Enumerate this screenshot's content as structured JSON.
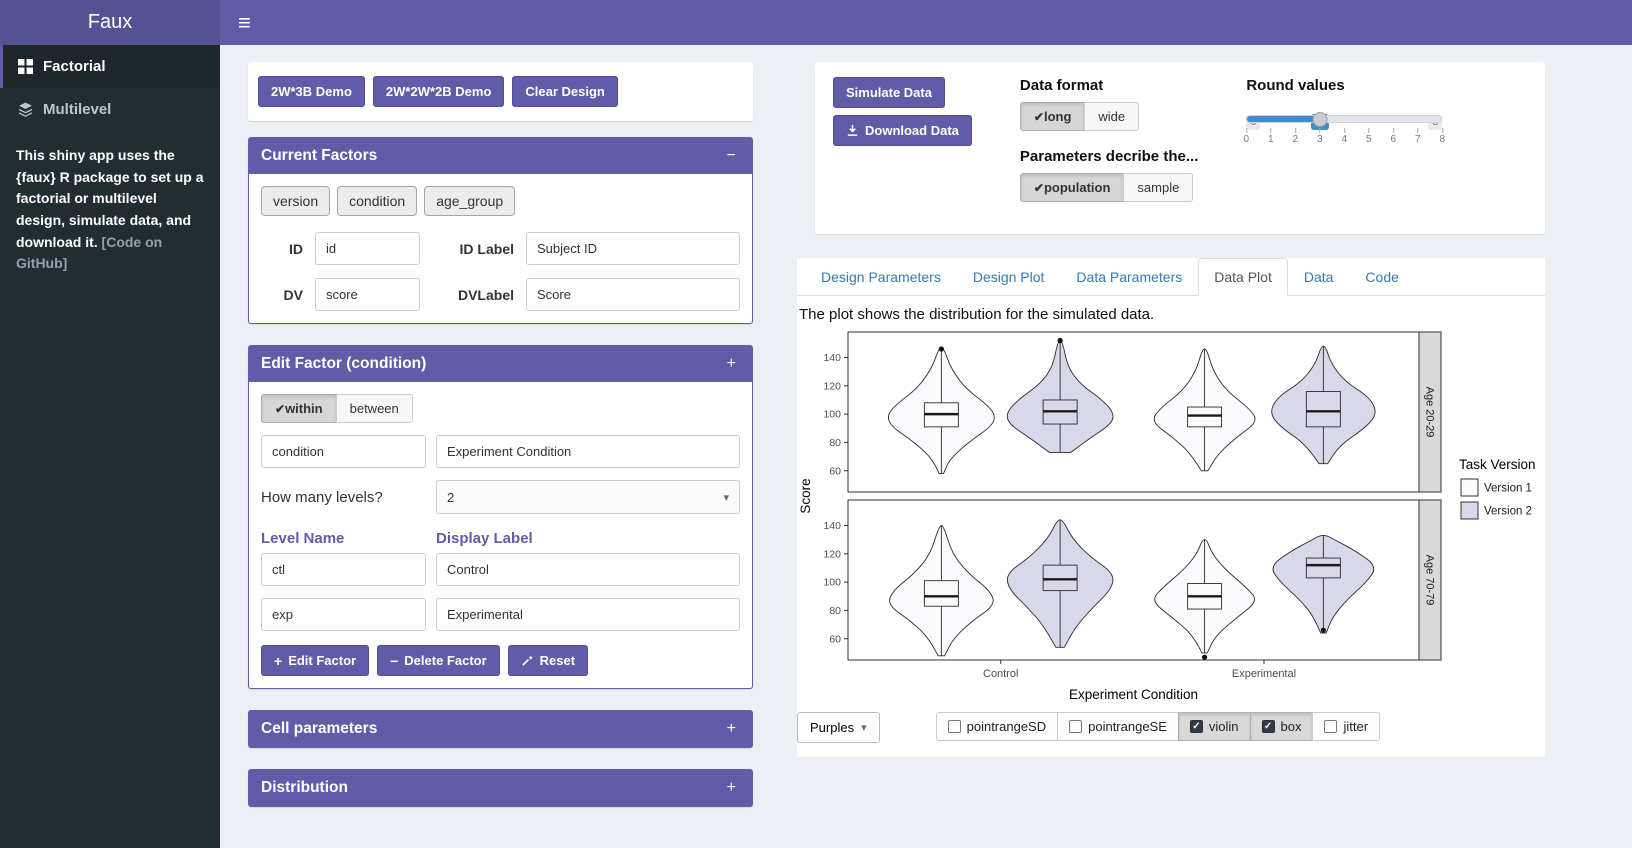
{
  "topbar": {
    "title": "Faux"
  },
  "sidebar": {
    "items": [
      {
        "label": "Factorial",
        "icon": "grid-icon",
        "active": true
      },
      {
        "label": "Multilevel",
        "icon": "layers-icon",
        "active": false
      }
    ],
    "description": "This shiny app uses the {faux} R package to set up a factorial or multilevel design, simulate data, and download it. ",
    "github_link": "[Code on GitHub]"
  },
  "left_panel": {
    "demo_buttons": [
      "2W*3B Demo",
      "2W*2W*2B Demo",
      "Clear Design"
    ],
    "current_factors": {
      "title": "Current Factors",
      "collapse_icon": "−",
      "factor_chips": [
        "version",
        "condition",
        "age_group"
      ],
      "id_label": "ID",
      "id_value": "id",
      "id_label_label": "ID Label",
      "id_label_value": "Subject ID",
      "dv_label": "DV",
      "dv_value": "score",
      "dv_label_label": "DVLabel",
      "dv_label_value": "Score"
    },
    "edit_factor": {
      "title": "Edit Factor (condition)",
      "collapse_icon": "+",
      "within_between": {
        "options": [
          "within",
          "between"
        ],
        "selected": "within"
      },
      "factor_name": "condition",
      "factor_display": "Experiment Condition",
      "levels_label": "How many levels?",
      "levels_count": "2",
      "level_name_header": "Level Name",
      "display_label_header": "Display Label",
      "levels": [
        {
          "name": "ctl",
          "display": "Control"
        },
        {
          "name": "exp",
          "display": "Experimental"
        }
      ],
      "edit_button": "Edit Factor",
      "delete_button": "Delete Factor",
      "reset_button": "Reset"
    },
    "cell_parameters": {
      "title": "Cell parameters",
      "collapse_icon": "+"
    },
    "distribution": {
      "title": "Distribution",
      "collapse_icon": "+"
    }
  },
  "right_panel": {
    "simulate_button": "Simulate Data",
    "download_button": "Download Data",
    "data_format": {
      "label": "Data format",
      "options": [
        "long",
        "wide"
      ],
      "selected": "long"
    },
    "parameters_describe": {
      "label": "Parameters decribe the...",
      "options": [
        "population",
        "sample"
      ],
      "selected": "population"
    },
    "round_values": {
      "label": "Round values",
      "min": 0,
      "max": 8,
      "value": 3,
      "ticks": [
        "0",
        "1",
        "2",
        "3",
        "4",
        "5",
        "6",
        "7",
        "8"
      ]
    },
    "tabs": [
      "Design Parameters",
      "Design Plot",
      "Data Parameters",
      "Data Plot",
      "Data",
      "Code"
    ],
    "active_tab": "Data Plot",
    "plot_caption": "The plot shows the distribution for the simulated data.",
    "palette_button": "Purples",
    "plot_options": [
      {
        "label": "pointrangeSD",
        "checked": false
      },
      {
        "label": "pointrangeSE",
        "checked": false
      },
      {
        "label": "violin",
        "checked": true
      },
      {
        "label": "box",
        "checked": true
      },
      {
        "label": "jitter",
        "checked": false
      }
    ]
  },
  "chart_data": {
    "type": "violin+box",
    "xlabel": "Experiment Condition",
    "ylabel": "Score",
    "x_categories": [
      "Control",
      "Experimental"
    ],
    "facets": [
      "Age 20-29",
      "Age 70-79"
    ],
    "y_ticks": [
      60,
      80,
      100,
      120,
      140
    ],
    "y_domain": [
      45,
      158
    ],
    "grid": false,
    "legend": {
      "title": "Task Version",
      "position": "right",
      "entries": [
        "Version 1",
        "Version 2"
      ],
      "colors": [
        "#fbfafc",
        "#d8d8ea"
      ]
    },
    "groups": [
      {
        "facet": "Age 20-29",
        "x": "Control",
        "version": "Version 1",
        "median": 100,
        "q1": 91,
        "q3": 108,
        "lo": 58,
        "hi": 147,
        "outliers": [
          146
        ],
        "profile": [
          [
            58,
            0.04
          ],
          [
            68,
            0.15
          ],
          [
            80,
            0.5
          ],
          [
            92,
            0.95
          ],
          [
            100,
            1.0
          ],
          [
            108,
            0.8
          ],
          [
            118,
            0.45
          ],
          [
            132,
            0.18
          ],
          [
            147,
            0.04
          ]
        ]
      },
      {
        "facet": "Age 20-29",
        "x": "Control",
        "version": "Version 2",
        "median": 102,
        "q1": 93,
        "q3": 110,
        "lo": 73,
        "hi": 152,
        "outliers": [
          152
        ],
        "profile": [
          [
            73,
            0.2
          ],
          [
            83,
            0.55
          ],
          [
            93,
            0.95
          ],
          [
            101,
            1.0
          ],
          [
            111,
            0.75
          ],
          [
            121,
            0.38
          ],
          [
            133,
            0.14
          ],
          [
            152,
            0.04
          ]
        ]
      },
      {
        "facet": "Age 20-29",
        "x": "Experimental",
        "version": "Version 1",
        "median": 99,
        "q1": 91,
        "q3": 105,
        "lo": 60,
        "hi": 146,
        "outliers": [],
        "profile": [
          [
            60,
            0.06
          ],
          [
            72,
            0.25
          ],
          [
            84,
            0.6
          ],
          [
            95,
            1.0
          ],
          [
            105,
            0.8
          ],
          [
            116,
            0.42
          ],
          [
            130,
            0.16
          ],
          [
            146,
            0.04
          ]
        ]
      },
      {
        "facet": "Age 20-29",
        "x": "Experimental",
        "version": "Version 2",
        "median": 102,
        "q1": 91,
        "q3": 116,
        "lo": 65,
        "hi": 148,
        "outliers": [],
        "profile": [
          [
            65,
            0.08
          ],
          [
            78,
            0.3
          ],
          [
            91,
            0.8
          ],
          [
            101,
            1.0
          ],
          [
            112,
            0.85
          ],
          [
            123,
            0.4
          ],
          [
            136,
            0.14
          ],
          [
            148,
            0.04
          ]
        ]
      },
      {
        "facet": "Age 70-79",
        "x": "Control",
        "version": "Version 1",
        "median": 90,
        "q1": 83,
        "q3": 101,
        "lo": 48,
        "hi": 140,
        "outliers": [],
        "profile": [
          [
            48,
            0.06
          ],
          [
            60,
            0.22
          ],
          [
            72,
            0.55
          ],
          [
            84,
            1.0
          ],
          [
            94,
            0.9
          ],
          [
            106,
            0.5
          ],
          [
            120,
            0.2
          ],
          [
            140,
            0.04
          ]
        ]
      },
      {
        "facet": "Age 70-79",
        "x": "Control",
        "version": "Version 2",
        "median": 102,
        "q1": 94,
        "q3": 112,
        "lo": 54,
        "hi": 144,
        "outliers": [],
        "profile": [
          [
            54,
            0.08
          ],
          [
            68,
            0.28
          ],
          [
            82,
            0.6
          ],
          [
            95,
            0.95
          ],
          [
            106,
            1.0
          ],
          [
            118,
            0.55
          ],
          [
            131,
            0.22
          ],
          [
            144,
            0.05
          ]
        ]
      },
      {
        "facet": "Age 70-79",
        "x": "Experimental",
        "version": "Version 1",
        "median": 90,
        "q1": 81,
        "q3": 99,
        "lo": 50,
        "hi": 130,
        "outliers": [
          47
        ],
        "profile": [
          [
            50,
            0.05
          ],
          [
            62,
            0.2
          ],
          [
            75,
            0.6
          ],
          [
            87,
            1.0
          ],
          [
            97,
            0.75
          ],
          [
            109,
            0.38
          ],
          [
            120,
            0.14
          ],
          [
            130,
            0.04
          ]
        ]
      },
      {
        "facet": "Age 70-79",
        "x": "Experimental",
        "version": "Version 2",
        "median": 112,
        "q1": 103,
        "q3": 117,
        "lo": 64,
        "hi": 133,
        "outliers": [
          66
        ],
        "profile": [
          [
            64,
            0.05
          ],
          [
            76,
            0.18
          ],
          [
            88,
            0.45
          ],
          [
            100,
            0.8
          ],
          [
            111,
            1.0
          ],
          [
            122,
            0.6
          ],
          [
            130,
            0.2
          ],
          [
            133,
            0.06
          ]
        ]
      }
    ]
  }
}
